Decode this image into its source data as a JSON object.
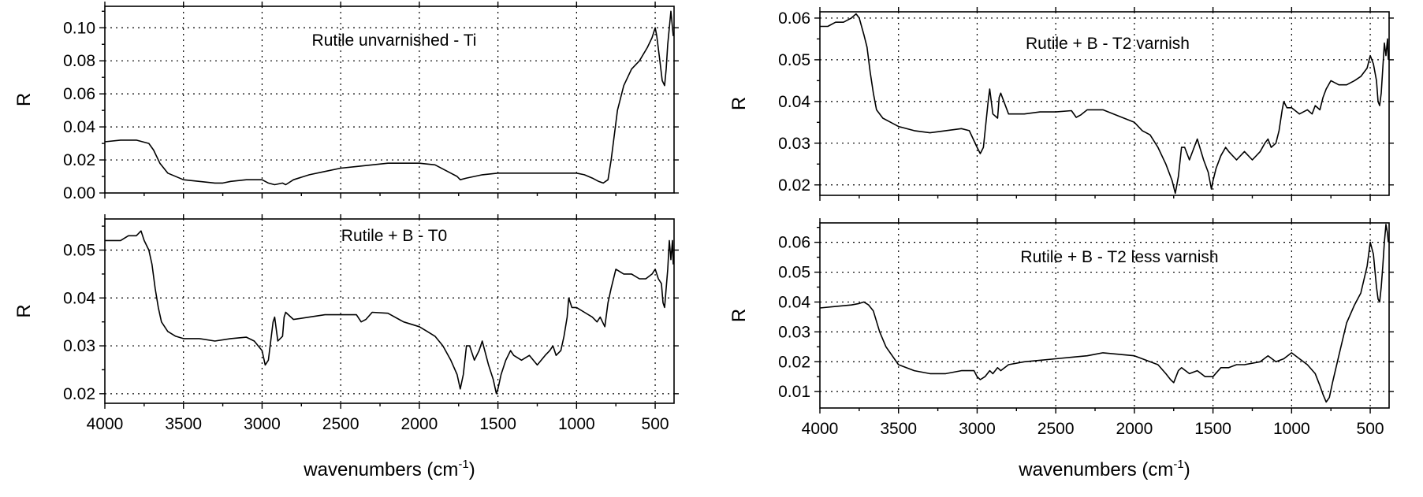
{
  "chart_data": [
    {
      "type": "line",
      "title": "",
      "annotation": "Rutile unvarnished - Ti",
      "xlabel": "",
      "ylabel": "R",
      "xlim": [
        4000,
        380
      ],
      "ylim": [
        0.0,
        0.113
      ],
      "xticks": [
        4000,
        3500,
        3000,
        2500,
        2000,
        1500,
        1000,
        500
      ],
      "xtick_labels_shown": false,
      "yticks": [
        0.0,
        0.02,
        0.04,
        0.06,
        0.08,
        0.1
      ],
      "ytick_labels": [
        "0.00",
        "0.02",
        "0.04",
        "0.06",
        "0.08",
        "0.10"
      ],
      "grid": true,
      "series": [
        {
          "x": [
            4000,
            3900,
            3800,
            3720,
            3690,
            3650,
            3600,
            3500,
            3400,
            3300,
            3250,
            3200,
            3100,
            3000,
            2960,
            2920,
            2870,
            2850,
            2800,
            2700,
            2600,
            2500,
            2400,
            2300,
            2200,
            2100,
            2000,
            1900,
            1800,
            1760,
            1740,
            1700,
            1600,
            1500,
            1400,
            1300,
            1200,
            1100,
            1000,
            950,
            900,
            860,
            830,
            800,
            780,
            760,
            740,
            700,
            650,
            600,
            550,
            520,
            500,
            490,
            470,
            455,
            440,
            430,
            420,
            410,
            400,
            390,
            385
          ],
          "y": [
            0.031,
            0.032,
            0.032,
            0.03,
            0.026,
            0.018,
            0.012,
            0.008,
            0.007,
            0.006,
            0.006,
            0.007,
            0.008,
            0.008,
            0.006,
            0.005,
            0.006,
            0.005,
            0.008,
            0.011,
            0.013,
            0.015,
            0.016,
            0.017,
            0.018,
            0.018,
            0.018,
            0.017,
            0.012,
            0.01,
            0.008,
            0.009,
            0.011,
            0.012,
            0.012,
            0.012,
            0.012,
            0.012,
            0.012,
            0.011,
            0.009,
            0.007,
            0.006,
            0.008,
            0.02,
            0.035,
            0.05,
            0.065,
            0.075,
            0.08,
            0.088,
            0.094,
            0.1,
            0.095,
            0.08,
            0.068,
            0.065,
            0.075,
            0.09,
            0.1,
            0.11,
            0.1,
            0.095
          ]
        }
      ]
    },
    {
      "type": "line",
      "title": "",
      "annotation": "Rutile + B - T0",
      "xlabel": "wavenumbers (cm",
      "xlabel_superscript": "-1",
      "xlabel_suffix": ")",
      "ylabel": "R",
      "xlim": [
        4000,
        380
      ],
      "ylim": [
        0.018,
        0.0565
      ],
      "xticks": [
        4000,
        3500,
        3000,
        2500,
        2000,
        1500,
        1000,
        500
      ],
      "xtick_labels": [
        "4000",
        "3500",
        "3000",
        "2500",
        "2000",
        "1500",
        "1000",
        "500"
      ],
      "yticks": [
        0.02,
        0.03,
        0.04,
        0.05
      ],
      "ytick_labels": [
        "0.02",
        "0.03",
        "0.04",
        "0.05"
      ],
      "grid": true,
      "series": [
        {
          "x": [
            4000,
            3950,
            3900,
            3850,
            3800,
            3770,
            3750,
            3720,
            3700,
            3680,
            3660,
            3640,
            3600,
            3550,
            3500,
            3400,
            3300,
            3200,
            3100,
            3050,
            3000,
            2980,
            2960,
            2930,
            2920,
            2900,
            2870,
            2860,
            2850,
            2800,
            2700,
            2600,
            2500,
            2400,
            2370,
            2340,
            2300,
            2200,
            2100,
            2000,
            1950,
            1900,
            1850,
            1800,
            1760,
            1740,
            1720,
            1700,
            1680,
            1650,
            1620,
            1600,
            1560,
            1530,
            1510,
            1500,
            1480,
            1450,
            1420,
            1400,
            1350,
            1300,
            1250,
            1200,
            1170,
            1150,
            1130,
            1100,
            1080,
            1060,
            1050,
            1030,
            1000,
            950,
            900,
            870,
            850,
            820,
            800,
            780,
            750,
            700,
            650,
            600,
            560,
            520,
            500,
            480,
            460,
            450,
            440,
            430,
            420,
            410,
            400,
            390,
            385
          ],
          "y": [
            0.052,
            0.052,
            0.052,
            0.053,
            0.053,
            0.054,
            0.052,
            0.05,
            0.047,
            0.042,
            0.038,
            0.035,
            0.033,
            0.032,
            0.0315,
            0.0315,
            0.031,
            0.0315,
            0.0318,
            0.031,
            0.029,
            0.026,
            0.027,
            0.035,
            0.036,
            0.031,
            0.032,
            0.036,
            0.037,
            0.0355,
            0.036,
            0.0365,
            0.0365,
            0.0365,
            0.035,
            0.0355,
            0.037,
            0.0368,
            0.035,
            0.034,
            0.033,
            0.032,
            0.03,
            0.027,
            0.024,
            0.021,
            0.024,
            0.03,
            0.03,
            0.027,
            0.029,
            0.031,
            0.026,
            0.023,
            0.02,
            0.021,
            0.024,
            0.027,
            0.029,
            0.028,
            0.027,
            0.028,
            0.026,
            0.028,
            0.029,
            0.03,
            0.028,
            0.029,
            0.032,
            0.036,
            0.04,
            0.038,
            0.038,
            0.037,
            0.036,
            0.035,
            0.036,
            0.034,
            0.039,
            0.042,
            0.046,
            0.045,
            0.045,
            0.044,
            0.044,
            0.045,
            0.046,
            0.044,
            0.043,
            0.039,
            0.038,
            0.042,
            0.046,
            0.052,
            0.048,
            0.052,
            0.047
          ]
        }
      ]
    },
    {
      "type": "line",
      "title": "",
      "annotation": "Rutile + B - T2 varnish",
      "xlabel": "",
      "ylabel": "R",
      "xlim": [
        4000,
        380
      ],
      "ylim": [
        0.0175,
        0.0615
      ],
      "xticks": [
        4000,
        3500,
        3000,
        2500,
        2000,
        1500,
        1000,
        500
      ],
      "xtick_labels_shown": false,
      "yticks": [
        0.02,
        0.03,
        0.04,
        0.05,
        0.06
      ],
      "ytick_labels": [
        "0.02",
        "0.03",
        "0.04",
        "0.05",
        "0.06"
      ],
      "grid": true,
      "series": [
        {
          "x": [
            4000,
            3950,
            3900,
            3850,
            3800,
            3770,
            3750,
            3720,
            3700,
            3680,
            3660,
            3640,
            3600,
            3550,
            3500,
            3400,
            3300,
            3200,
            3100,
            3050,
            3000,
            2980,
            2960,
            2930,
            2920,
            2900,
            2870,
            2860,
            2850,
            2800,
            2700,
            2600,
            2500,
            2400,
            2370,
            2340,
            2300,
            2200,
            2100,
            2000,
            1950,
            1900,
            1850,
            1800,
            1760,
            1740,
            1720,
            1700,
            1680,
            1650,
            1620,
            1600,
            1560,
            1530,
            1510,
            1500,
            1480,
            1450,
            1420,
            1400,
            1350,
            1300,
            1250,
            1200,
            1170,
            1150,
            1130,
            1100,
            1080,
            1060,
            1050,
            1030,
            1000,
            950,
            900,
            870,
            850,
            820,
            800,
            780,
            750,
            700,
            650,
            600,
            560,
            520,
            500,
            480,
            460,
            450,
            440,
            430,
            420,
            410,
            400,
            390,
            385
          ],
          "y": [
            0.058,
            0.058,
            0.059,
            0.059,
            0.06,
            0.061,
            0.06,
            0.056,
            0.053,
            0.047,
            0.042,
            0.038,
            0.036,
            0.035,
            0.034,
            0.033,
            0.0325,
            0.033,
            0.0335,
            0.033,
            0.029,
            0.0275,
            0.029,
            0.04,
            0.043,
            0.037,
            0.036,
            0.041,
            0.042,
            0.037,
            0.037,
            0.0375,
            0.0375,
            0.0378,
            0.0362,
            0.0368,
            0.038,
            0.038,
            0.0365,
            0.035,
            0.033,
            0.032,
            0.029,
            0.025,
            0.021,
            0.018,
            0.022,
            0.029,
            0.029,
            0.026,
            0.029,
            0.031,
            0.026,
            0.023,
            0.019,
            0.021,
            0.024,
            0.027,
            0.029,
            0.028,
            0.026,
            0.028,
            0.026,
            0.028,
            0.03,
            0.031,
            0.029,
            0.03,
            0.033,
            0.038,
            0.04,
            0.0385,
            0.0385,
            0.037,
            0.038,
            0.037,
            0.039,
            0.038,
            0.041,
            0.043,
            0.045,
            0.044,
            0.044,
            0.045,
            0.046,
            0.048,
            0.051,
            0.049,
            0.045,
            0.04,
            0.039,
            0.042,
            0.048,
            0.054,
            0.051,
            0.055,
            0.05
          ]
        }
      ]
    },
    {
      "type": "line",
      "title": "",
      "annotation": "Rutile + B - T2 less varnish",
      "xlabel": "wavenumbers (cm",
      "xlabel_superscript": "-1",
      "xlabel_suffix": ")",
      "ylabel": "R",
      "xlim": [
        4000,
        380
      ],
      "ylim": [
        0.0045,
        0.0665
      ],
      "xticks": [
        4000,
        3500,
        3000,
        2500,
        2000,
        1500,
        1000,
        500
      ],
      "xtick_labels": [
        "4000",
        "3500",
        "3000",
        "2500",
        "2000",
        "1500",
        "1000",
        "500"
      ],
      "yticks": [
        0.01,
        0.02,
        0.03,
        0.04,
        0.05,
        0.06
      ],
      "ytick_labels": [
        "0.01",
        "0.02",
        "0.03",
        "0.04",
        "0.05",
        "0.06"
      ],
      "grid": true,
      "series": [
        {
          "x": [
            4000,
            3900,
            3800,
            3750,
            3720,
            3690,
            3660,
            3620,
            3580,
            3500,
            3400,
            3300,
            3200,
            3100,
            3020,
            3000,
            2980,
            2950,
            2920,
            2900,
            2870,
            2850,
            2800,
            2700,
            2600,
            2500,
            2400,
            2300,
            2250,
            2200,
            2100,
            2000,
            1950,
            1900,
            1850,
            1800,
            1770,
            1750,
            1720,
            1700,
            1650,
            1600,
            1550,
            1500,
            1450,
            1400,
            1350,
            1300,
            1200,
            1150,
            1100,
            1050,
            1000,
            950,
            900,
            850,
            820,
            800,
            780,
            760,
            740,
            700,
            650,
            600,
            560,
            520,
            500,
            480,
            460,
            450,
            440,
            430,
            420,
            410,
            400,
            390,
            385
          ],
          "y": [
            0.038,
            0.0385,
            0.039,
            0.0395,
            0.04,
            0.039,
            0.037,
            0.03,
            0.025,
            0.019,
            0.017,
            0.016,
            0.016,
            0.017,
            0.017,
            0.015,
            0.014,
            0.015,
            0.017,
            0.016,
            0.018,
            0.017,
            0.019,
            0.02,
            0.0205,
            0.021,
            0.0215,
            0.022,
            0.0225,
            0.023,
            0.0225,
            0.022,
            0.021,
            0.02,
            0.019,
            0.016,
            0.014,
            0.013,
            0.017,
            0.018,
            0.016,
            0.017,
            0.015,
            0.015,
            0.018,
            0.018,
            0.019,
            0.019,
            0.02,
            0.022,
            0.02,
            0.021,
            0.023,
            0.021,
            0.019,
            0.016,
            0.012,
            0.009,
            0.0065,
            0.008,
            0.013,
            0.022,
            0.033,
            0.039,
            0.043,
            0.052,
            0.06,
            0.056,
            0.045,
            0.041,
            0.04,
            0.045,
            0.052,
            0.06,
            0.066,
            0.063,
            0.06
          ]
        }
      ]
    }
  ]
}
